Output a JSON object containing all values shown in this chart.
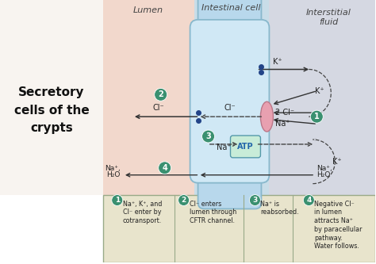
{
  "bg_left": "#f2d8cc",
  "bg_center": "#c8dde8",
  "bg_right": "#d5d8e2",
  "bg_bottom": "#e8e4cc",
  "cell_color": "#b8d8ec",
  "cell_light": "#d0e8f5",
  "cell_outline": "#88b8cc",
  "lumen_label": "Lumen",
  "center_label": "Intestinal cell",
  "right_label": "Interstitial\nfluid",
  "circle_color": "#3a9070",
  "circle_text_color": "#ffffff",
  "atp_fill": "#c8ecd8",
  "atp_border": "#5599aa",
  "atp_text_color": "#2266aa",
  "cotransporter_fill": "#e8a0b0",
  "cotransporter_border": "#bb7788",
  "footer_border": "#99aa88",
  "arrow_color": "#333333",
  "dash_color": "#444444",
  "dot_color": "#224488",
  "ion_color": "#222222",
  "title_color": "#111111",
  "header_color": "#444444",
  "footer_texts": [
    "Na⁺, K⁺, and\nCl⁻ enter by\ncotransport.",
    "Cl⁻ enters\nlumen through\nCFTR channel.",
    "Na⁺ is\nreabsorbed.",
    "Negative Cl⁻\nin lumen\nattracts Na⁺\nby paracellular\npathway.\nWater follows."
  ],
  "footer_numbers": [
    "1",
    "2",
    "3",
    "4"
  ]
}
